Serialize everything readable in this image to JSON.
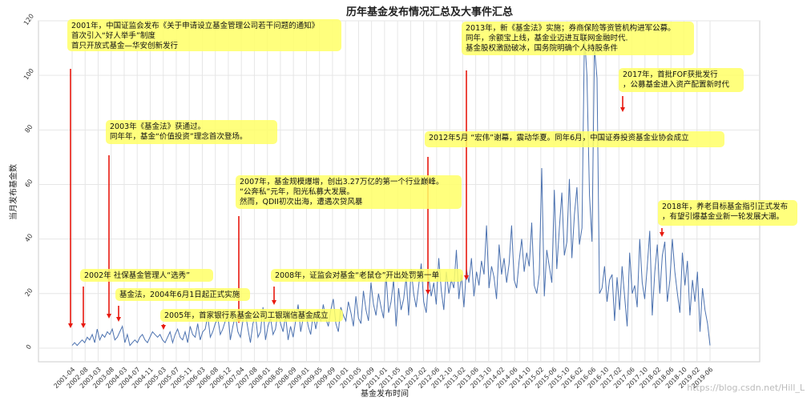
{
  "chart_data": {
    "type": "line",
    "title": "历年基金发布情况汇总及大事件汇总",
    "xlabel": "基金发布时间",
    "ylabel": "当月发布基金数",
    "ylim": [
      -5,
      120
    ],
    "yticks": [
      0,
      20,
      40,
      60,
      80,
      100,
      120
    ],
    "grid": true,
    "x_tick_labels": [
      "2001-04",
      "2002-08",
      "2003-03",
      "2003-08",
      "2004-03",
      "2004-07",
      "2004-11",
      "2005-03",
      "2005-07",
      "2005-11",
      "2006-03",
      "2006-08",
      "2006-12",
      "2007-04",
      "2007-08",
      "2008-01",
      "2008-05",
      "2008-09",
      "2009-01",
      "2009-05",
      "2009-09",
      "2010-01",
      "2010-05",
      "2010-09",
      "2011-01",
      "2011-05",
      "2011-09",
      "2012-02",
      "2012-06",
      "2012-10",
      "2013-02",
      "2013-06",
      "2013-10",
      "2014-02",
      "2014-06",
      "2014-10",
      "2015-02",
      "2015-06",
      "2015-10",
      "2016-02",
      "2016-06",
      "2016-10",
      "2017-02",
      "2017-06",
      "2017-10",
      "2018-02",
      "2018-06",
      "2018-10",
      "2019-02",
      "2019-06"
    ],
    "series": [
      {
        "color": "#4c72b0",
        "values": [
          1,
          2,
          1,
          2,
          3,
          2,
          4,
          3,
          5,
          2,
          7,
          3,
          5,
          4,
          6,
          5,
          7,
          3,
          4,
          6,
          8,
          2,
          5,
          1,
          2,
          3,
          2,
          4,
          5,
          3,
          2,
          4,
          6,
          5,
          4,
          5,
          3,
          2,
          4,
          6,
          2,
          5,
          7,
          4,
          3,
          6,
          2,
          8,
          5,
          4,
          9,
          3,
          6,
          7,
          12,
          4,
          6,
          9,
          11,
          5,
          7,
          10,
          14,
          3,
          8,
          12,
          6,
          4,
          10,
          13,
          7,
          2,
          9,
          12,
          4,
          6,
          15,
          3,
          8,
          11,
          5,
          7,
          14,
          9,
          6,
          12,
          3,
          8,
          4,
          10,
          16,
          6,
          11,
          14,
          8,
          5,
          13,
          7,
          12,
          10,
          16,
          11,
          8,
          14,
          18,
          9,
          6,
          15,
          12,
          10,
          17,
          13,
          8,
          19,
          11,
          9,
          21,
          14,
          10,
          24,
          16,
          12,
          20,
          15,
          11,
          27,
          13,
          17,
          25,
          8,
          22,
          14,
          18,
          26,
          12,
          29,
          20,
          15,
          23,
          31,
          17,
          13,
          26,
          19,
          24,
          16,
          33,
          21,
          14,
          28,
          20,
          25,
          22,
          36,
          18,
          27,
          15,
          29,
          24,
          33,
          19,
          28,
          23,
          32,
          27,
          45,
          22,
          30,
          26,
          18,
          38,
          27,
          33,
          24,
          31,
          45,
          25,
          22,
          32,
          40,
          28,
          35,
          30,
          46,
          23,
          20,
          27,
          66,
          19,
          36,
          30,
          24,
          58,
          29,
          44,
          57,
          34,
          39,
          62,
          33,
          49,
          59,
          38,
          44,
          115,
          100,
          56,
          39,
          110,
          99,
          20,
          22,
          30,
          17,
          25,
          27,
          10,
          26,
          14,
          30,
          19,
          8,
          35,
          20,
          23,
          15,
          40,
          24,
          18,
          30,
          43,
          12,
          28,
          38,
          20,
          34,
          39,
          17,
          25,
          40,
          28,
          20,
          13,
          35,
          23,
          32,
          12,
          25,
          17,
          28,
          6,
          22,
          14,
          9,
          1
        ]
      }
    ]
  },
  "annotations": [
    {
      "text": [
        "2001年，中国证监会发布《关于申请设立基金管理公司若干问题的通知》",
        "首次引入“好人举手”制度",
        "首只开放式基金—华安创新发行"
      ]
    },
    {
      "text": [
        "2002年   社保基金管理人“选秀”"
      ]
    },
    {
      "text": [
        "2003年《基金法》获通过。",
        "同年年，基金“价值投资”理念首次登场。"
      ]
    },
    {
      "text": [
        "基金法，2004年6月1日起正式实施"
      ]
    },
    {
      "text": [
        "2005年，首家银行系基金公司工银瑞信基金成立"
      ]
    },
    {
      "text": [
        "2007年，基金规模爆增，创出3.27万亿的第一个行业巅峰。",
        "“公奔私”元年，阳光私募大发展。",
        "然而，QDII初次出海，遭遇次贷风暴"
      ]
    },
    {
      "text": [
        "2008年，证监会对基金“老鼠仓”开出处罚第一单"
      ]
    },
    {
      "text": [
        "2012年5月   “宏伟”谢幕，震动华夏。同年6月，中国证券投资基金业协会成立"
      ]
    },
    {
      "text": [
        "2013年，新《基金法》实施；券商保险等资管机构进军公募。",
        "同年，余额宝上线，基金业迈进互联网金融时代.",
        "基金股权激励破冰，国务院明确个人持股条件"
      ]
    },
    {
      "text": [
        "2017年，首批FOF获批发行",
        "，公募基金进入资产配置新时代"
      ]
    },
    {
      "text": [
        "2018年，养老目标基金指引正式发布",
        "，有望引爆基金业新一轮发展大潮。"
      ]
    }
  ],
  "watermark": "https://blog.csdn.net/Hill_L"
}
